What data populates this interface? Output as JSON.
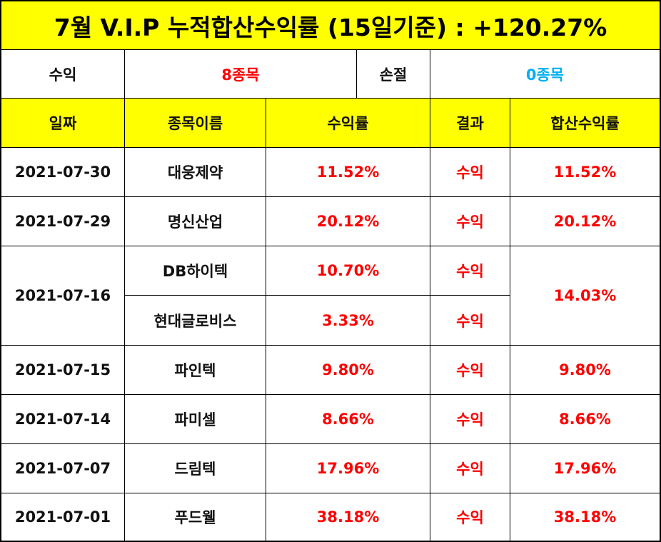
{
  "title": "7월 V.I.P 누적합산수익률 (15일기준) : +120.27%",
  "summary": {
    "profit_label": "수익",
    "profit_value": "8종목",
    "loss_label": "손절",
    "loss_value": "0종목"
  },
  "headers": [
    "일짜",
    "종목이름",
    "수익률",
    "결과",
    "합산수익률"
  ],
  "rows": [
    {
      "date": "2021-07-30",
      "stocks": [
        {
          "name": "대웅제약",
          "rate": "11.52%",
          "result": "수익"
        }
      ],
      "total": "11.52%"
    },
    {
      "date": "2021-07-29",
      "stocks": [
        {
          "name": "명신산업",
          "rate": "20.12%",
          "result": "수익"
        }
      ],
      "total": "20.12%"
    },
    {
      "date": "2021-07-16",
      "stocks": [
        {
          "name": "DB하이텍",
          "rate": "10.70%",
          "result": "수익"
        },
        {
          "name": "현대글로비스",
          "rate": "3.33%",
          "result": "수익"
        }
      ],
      "total": "14.03%"
    },
    {
      "date": "2021-07-15",
      "stocks": [
        {
          "name": "파인텍",
          "rate": "9.80%",
          "result": "수익"
        }
      ],
      "total": "9.80%"
    },
    {
      "date": "2021-07-14",
      "stocks": [
        {
          "name": "파미셀",
          "rate": "8.66%",
          "result": "수익"
        }
      ],
      "total": "8.66%"
    },
    {
      "date": "2021-07-07",
      "stocks": [
        {
          "name": "드림텍",
          "rate": "17.96%",
          "result": "수익"
        }
      ],
      "total": "17.96%"
    },
    {
      "date": "2021-07-01",
      "stocks": [
        {
          "name": "푸드웰",
          "rate": "38.18%",
          "result": "수익"
        }
      ],
      "total": "38.18%"
    }
  ],
  "colors": {
    "title_bg": "#ffff00",
    "profit": "#ff0000",
    "zero_loss": "#00b0f0"
  }
}
